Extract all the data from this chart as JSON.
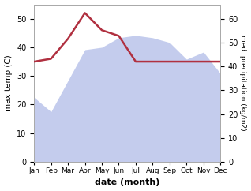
{
  "months": [
    "Jan",
    "Feb",
    "Mar",
    "Apr",
    "May",
    "Jun",
    "Jul",
    "Aug",
    "Sep",
    "Oct",
    "Nov",
    "Dec"
  ],
  "month_indices": [
    0,
    1,
    2,
    3,
    4,
    5,
    6,
    7,
    8,
    9,
    10,
    11
  ],
  "max_temp": [
    35,
    36,
    43,
    52,
    46,
    44,
    35,
    35,
    35,
    35,
    35,
    35
  ],
  "precipitation": [
    27,
    21,
    34,
    47,
    48,
    52,
    53,
    52,
    50,
    43,
    46,
    37
  ],
  "temp_ylim": [
    0,
    55
  ],
  "precip_ylim": [
    0,
    66
  ],
  "temp_yticks": [
    0,
    10,
    20,
    30,
    40,
    50
  ],
  "precip_yticks": [
    0,
    10,
    20,
    30,
    40,
    50,
    60
  ],
  "fill_color": "#b0bce8",
  "fill_alpha": 0.75,
  "line_color": "#b03040",
  "ylabel_left": "max temp (C)",
  "ylabel_right": "med. precipitation (kg/m2)",
  "xlabel": "date (month)",
  "bg_color": "#ffffff",
  "spine_color": "#aaaaaa"
}
